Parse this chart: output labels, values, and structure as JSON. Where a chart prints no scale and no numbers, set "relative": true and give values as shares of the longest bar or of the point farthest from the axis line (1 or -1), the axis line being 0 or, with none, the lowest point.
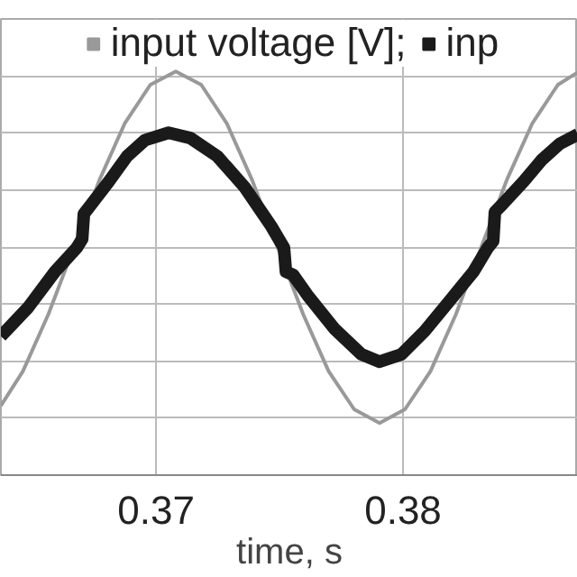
{
  "chart_data": {
    "type": "line",
    "xlabel": "time, s",
    "relative": true,
    "grid": true,
    "legend": "top",
    "xlim": [
      0.36372,
      0.38708
    ],
    "xticks": [
      0.37,
      0.38
    ],
    "series": [
      {
        "name": "input voltage [V];",
        "color": "#999999",
        "x": [
          0.36372,
          0.36461,
          0.36564,
          0.36668,
          0.36771,
          0.36874,
          0.36977,
          0.3708,
          0.37183,
          0.37286,
          0.37389,
          0.37492,
          0.37596,
          0.37699,
          0.37802,
          0.37905,
          0.38008,
          0.38111,
          0.38214,
          0.38317,
          0.3842,
          0.38524,
          0.38627,
          0.38708
        ],
        "values": [
          0.172,
          0.257,
          0.398,
          0.565,
          0.731,
          0.872,
          0.967,
          1.0,
          0.967,
          0.872,
          0.731,
          0.565,
          0.398,
          0.257,
          0.163,
          0.129,
          0.163,
          0.257,
          0.398,
          0.565,
          0.731,
          0.872,
          0.967,
          0.998
        ]
      },
      {
        "name": "inp",
        "color": "#1a1a1a",
        "x": [
          0.36372,
          0.36482,
          0.36591,
          0.36679,
          0.36701,
          0.36708,
          0.36737,
          0.3681,
          0.36883,
          0.36956,
          0.37051,
          0.37139,
          0.37248,
          0.37358,
          0.37467,
          0.37518,
          0.37526,
          0.37555,
          0.37613,
          0.37723,
          0.37832,
          0.37905,
          0.37993,
          0.38088,
          0.38197,
          0.38285,
          0.38343,
          0.38365,
          0.38372,
          0.38401,
          0.38489,
          0.38562,
          0.38635,
          0.38708
        ],
        "values": [
          0.344,
          0.415,
          0.504,
          0.563,
          0.585,
          0.647,
          0.67,
          0.728,
          0.79,
          0.83,
          0.848,
          0.835,
          0.79,
          0.714,
          0.616,
          0.563,
          0.504,
          0.496,
          0.446,
          0.362,
          0.299,
          0.281,
          0.299,
          0.357,
          0.438,
          0.504,
          0.563,
          0.58,
          0.652,
          0.67,
          0.728,
          0.781,
          0.821,
          0.844
        ]
      }
    ]
  }
}
